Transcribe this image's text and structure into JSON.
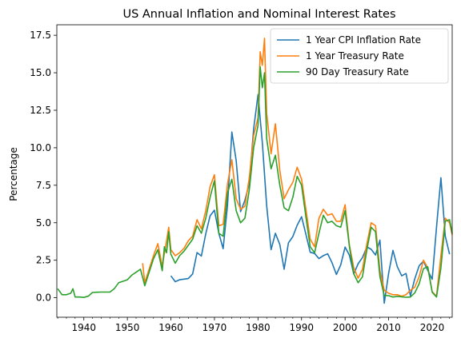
{
  "chart_data": {
    "type": "line",
    "title": "US Annual Inflation and Nominal Interest Rates",
    "xlabel": "",
    "ylabel": "Percentage",
    "xlim": [
      1933.8,
      2024.6
    ],
    "ylim": [
      -1.3,
      18.2
    ],
    "x_ticks": [
      1940,
      1950,
      1960,
      1970,
      1980,
      1990,
      2000,
      2010,
      2020
    ],
    "x_tick_labels": [
      "1940",
      "1950",
      "1960",
      "1970",
      "1980",
      "1990",
      "2000",
      "2010",
      "2020"
    ],
    "y_ticks": [
      0.0,
      2.5,
      5.0,
      7.5,
      10.0,
      12.5,
      15.0,
      17.5
    ],
    "y_tick_labels": [
      "0.0",
      "2.5",
      "5.0",
      "7.5",
      "10.0",
      "12.5",
      "15.0",
      "17.5"
    ],
    "grid": false,
    "legend_position": "top-right",
    "series": [
      {
        "name": "1 Year CPI Inflation Rate",
        "color": "#1f77b4",
        "x": [
          1960,
          1961,
          1962,
          1963,
          1964,
          1965,
          1966,
          1967,
          1968,
          1969,
          1970,
          1971,
          1972,
          1973,
          1974,
          1975,
          1976,
          1977,
          1978,
          1979,
          1980,
          1981,
          1982,
          1983,
          1984,
          1985,
          1986,
          1987,
          1988,
          1989,
          1990,
          1991,
          1992,
          1993,
          1994,
          1995,
          1996,
          1997,
          1998,
          1999,
          2000,
          2001,
          2002,
          2003,
          2004,
          2005,
          2006,
          2007,
          2008,
          2009,
          2010,
          2011,
          2012,
          2013,
          2014,
          2015,
          2016,
          2017,
          2018,
          2019,
          2020,
          2021,
          2022,
          2023,
          2024
        ],
        "y": [
          1.46,
          1.07,
          1.2,
          1.24,
          1.28,
          1.59,
          3.01,
          2.78,
          4.27,
          5.46,
          5.84,
          4.3,
          3.27,
          6.18,
          11.05,
          9.14,
          5.74,
          6.5,
          7.63,
          11.25,
          13.55,
          10.33,
          6.13,
          3.21,
          4.3,
          3.55,
          1.9,
          3.66,
          4.08,
          4.83,
          5.4,
          4.23,
          3.03,
          2.95,
          2.61,
          2.81,
          2.93,
          2.34,
          1.55,
          2.19,
          3.38,
          2.83,
          1.59,
          2.27,
          2.68,
          3.39,
          3.23,
          2.85,
          3.84,
          -0.36,
          1.64,
          3.16,
          2.07,
          1.46,
          1.62,
          0.12,
          1.26,
          2.13,
          2.44,
          1.81,
          1.23,
          4.7,
          8.0,
          4.12,
          2.9
        ]
      },
      {
        "name": "1 Year Treasury Rate",
        "color": "#ff7f0e",
        "x": [
          1953.5,
          1954,
          1955,
          1956,
          1957,
          1958,
          1959,
          1959.5,
          1960,
          1961,
          1962,
          1963,
          1964,
          1965,
          1966,
          1967,
          1968,
          1969,
          1970,
          1971,
          1972,
          1973,
          1974,
          1975,
          1976,
          1977,
          1978,
          1979,
          1980,
          1980.5,
          1981,
          1981.5,
          1982,
          1983,
          1984,
          1985,
          1986,
          1987,
          1988,
          1989,
          1990,
          1991,
          1992,
          1993,
          1994,
          1995,
          1996,
          1997,
          1998,
          1999,
          2000,
          2001,
          2002,
          2003,
          2004,
          2005,
          2006,
          2007,
          2008,
          2009,
          2010,
          2011,
          2012,
          2013,
          2014,
          2015,
          2016,
          2017,
          2018,
          2019,
          2020,
          2021,
          2022,
          2023,
          2024,
          2024.6
        ],
        "y": [
          2.3,
          1.0,
          1.9,
          2.8,
          3.6,
          2.1,
          3.8,
          4.7,
          3.2,
          2.8,
          3.0,
          3.3,
          3.8,
          4.1,
          5.2,
          4.6,
          5.8,
          7.4,
          8.2,
          4.8,
          4.9,
          7.6,
          9.2,
          6.6,
          5.9,
          6.1,
          8.0,
          10.8,
          12.0,
          16.4,
          15.5,
          17.3,
          12.3,
          9.6,
          11.6,
          8.5,
          6.6,
          7.2,
          7.7,
          8.7,
          7.9,
          5.9,
          3.9,
          3.4,
          5.3,
          5.9,
          5.5,
          5.6,
          5.1,
          5.1,
          6.2,
          3.5,
          2.0,
          1.3,
          1.9,
          3.6,
          5.0,
          4.8,
          1.8,
          0.5,
          0.3,
          0.2,
          0.2,
          0.1,
          0.2,
          0.5,
          0.7,
          1.4,
          2.5,
          2.0,
          0.4,
          0.1,
          2.8,
          5.3,
          5.0,
          4.2
        ]
      },
      {
        "name": "90 Day Treasury Rate",
        "color": "#2ca02c",
        "x": [
          1934,
          1935,
          1936,
          1937,
          1937.5,
          1938,
          1939,
          1940,
          1941,
          1942,
          1943,
          1944,
          1945,
          1946,
          1947,
          1948,
          1949,
          1950,
          1951,
          1952,
          1953,
          1954,
          1955,
          1956,
          1957,
          1958,
          1958.5,
          1959,
          1959.5,
          1960,
          1961,
          1962,
          1963,
          1964,
          1965,
          1966,
          1967,
          1968,
          1969,
          1970,
          1971,
          1972,
          1973,
          1974,
          1975,
          1976,
          1977,
          1978,
          1979,
          1980,
          1980.5,
          1981,
          1981.5,
          1982,
          1983,
          1984,
          1985,
          1986,
          1987,
          1988,
          1989,
          1990,
          1991,
          1992,
          1993,
          1994,
          1995,
          1996,
          1997,
          1998,
          1999,
          2000,
          2001,
          2002,
          2003,
          2004,
          2005,
          2006,
          2007,
          2008,
          2009,
          2010,
          2011,
          2012,
          2013,
          2014,
          2015,
          2016,
          2017,
          2018,
          2019,
          2020,
          2021,
          2022,
          2023,
          2024,
          2024.6
        ],
        "y": [
          0.6,
          0.2,
          0.2,
          0.3,
          0.6,
          0.05,
          0.05,
          0.02,
          0.1,
          0.35,
          0.37,
          0.38,
          0.38,
          0.38,
          0.6,
          1.0,
          1.1,
          1.2,
          1.5,
          1.7,
          1.9,
          0.8,
          1.7,
          2.6,
          3.2,
          1.8,
          3.4,
          3.0,
          4.4,
          2.9,
          2.3,
          2.8,
          3.1,
          3.5,
          3.9,
          4.8,
          4.3,
          5.3,
          6.7,
          7.8,
          4.3,
          4.1,
          7.0,
          7.9,
          5.8,
          5.0,
          5.3,
          7.2,
          10.0,
          11.5,
          15.4,
          14.0,
          15.0,
          10.6,
          8.6,
          9.5,
          7.5,
          6.0,
          5.8,
          6.7,
          8.1,
          7.5,
          5.4,
          3.4,
          3.0,
          4.3,
          5.5,
          5.0,
          5.1,
          4.8,
          4.7,
          5.8,
          3.4,
          1.6,
          1.0,
          1.4,
          3.2,
          4.7,
          4.4,
          1.4,
          0.15,
          0.14,
          0.05,
          0.09,
          0.06,
          0.03,
          0.05,
          0.32,
          0.93,
          1.94,
          2.06,
          0.37,
          0.05,
          2.0,
          5.1,
          5.2,
          4.3
        ]
      }
    ]
  }
}
